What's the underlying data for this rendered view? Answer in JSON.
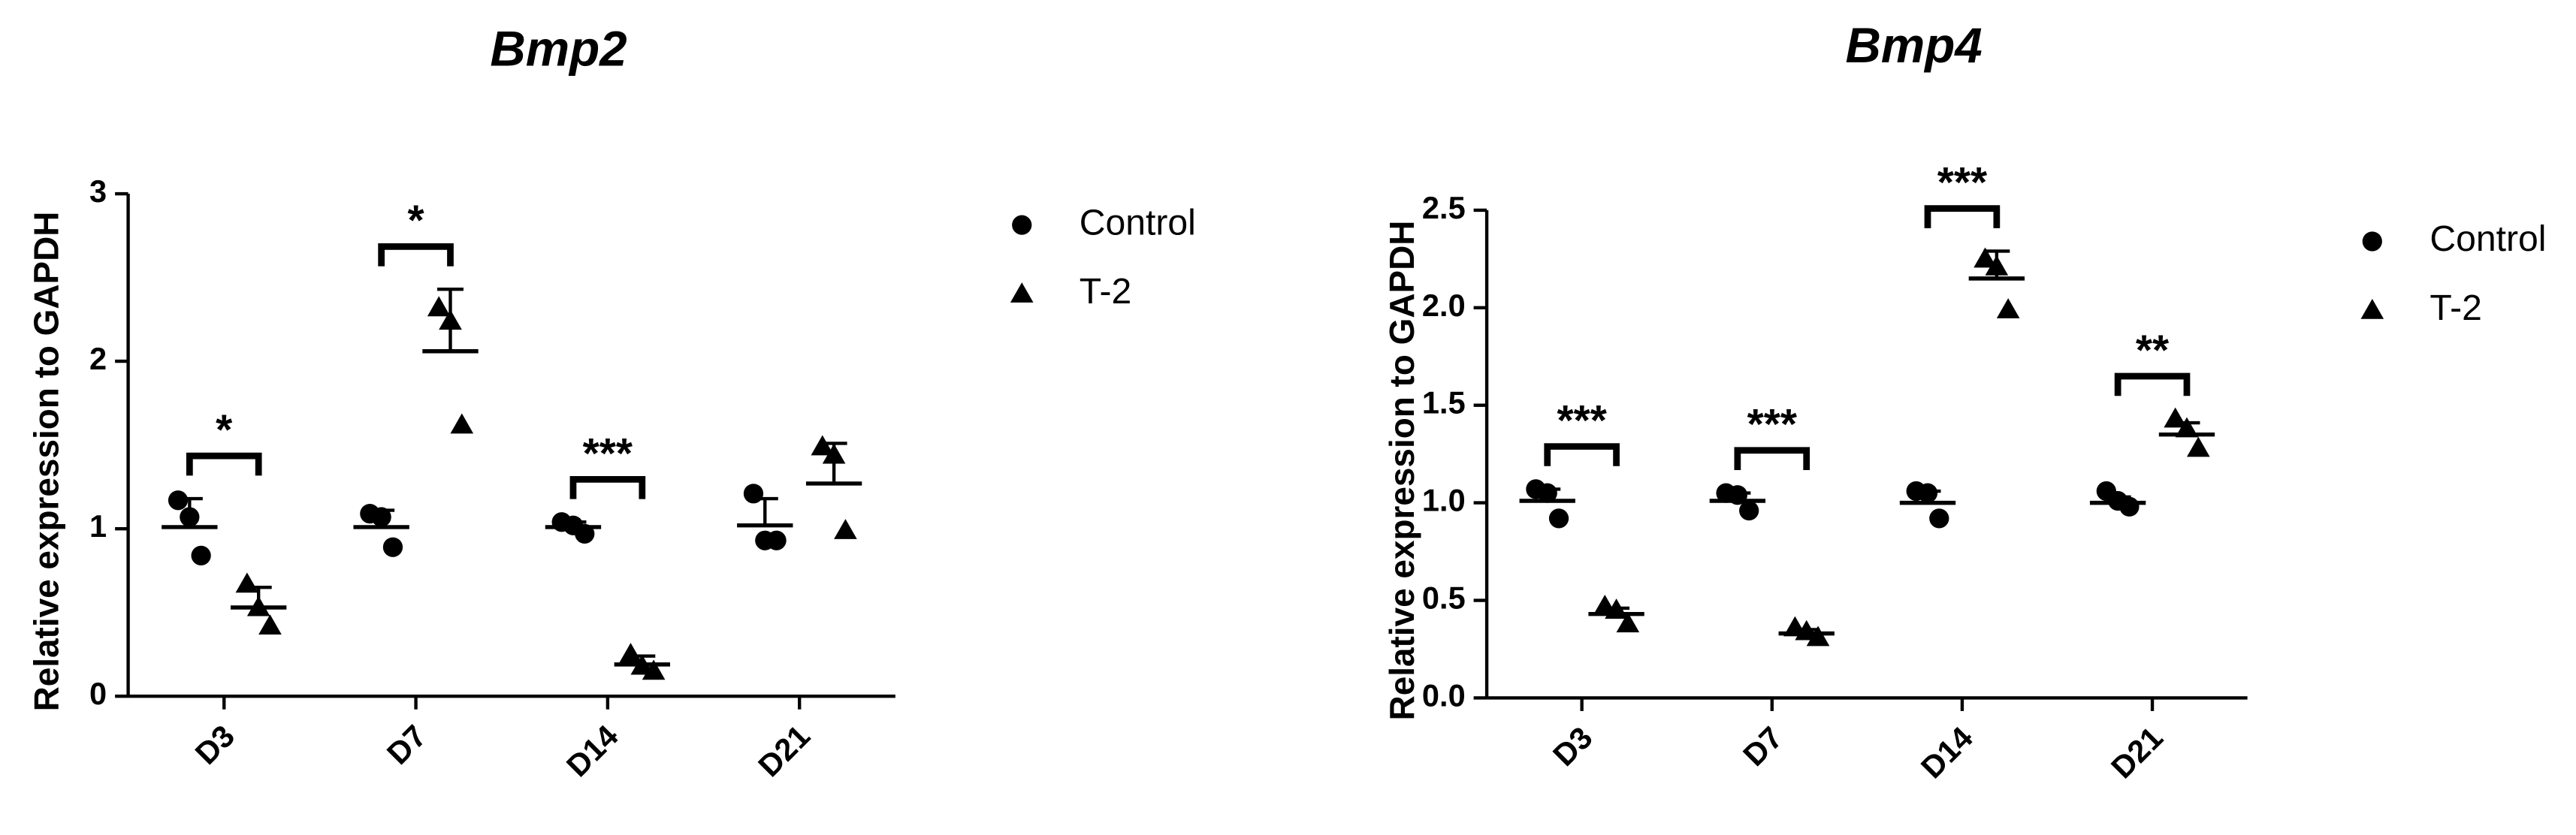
{
  "chart_data": [
    {
      "type": "dot",
      "title": "Bmp2",
      "y_label": "Relative expression to GAPDH",
      "categories": [
        "D3",
        "D7",
        "D14",
        "D21"
      ],
      "ylim": [
        0,
        3
      ],
      "yticks": [
        0,
        1,
        2,
        3
      ],
      "series": [
        {
          "name": "Control",
          "marker": "circle",
          "color": "#000000",
          "points": [
            [
              1.17,
              1.07,
              0.84
            ],
            [
              1.09,
              1.07,
              0.89
            ],
            [
              1.04,
              1.02,
              0.97
            ],
            [
              1.21,
              0.93,
              0.93
            ]
          ],
          "means": [
            1.01,
            1.01,
            1.01,
            1.02
          ],
          "sds": [
            0.17,
            0.1,
            0.03,
            0.16
          ]
        },
        {
          "name": "T-2",
          "marker": "triangle",
          "color": "#000000",
          "points": [
            [
              0.67,
              0.53,
              0.42
            ],
            [
              2.32,
              2.24,
              1.62
            ],
            [
              0.25,
              0.18,
              0.15
            ],
            [
              1.49,
              1.44,
              0.99
            ]
          ],
          "means": [
            0.53,
            2.06,
            0.19,
            1.27
          ],
          "sds": [
            0.12,
            0.37,
            0.05,
            0.24
          ]
        }
      ],
      "significance": [
        "*",
        "*",
        "***",
        null
      ]
    },
    {
      "type": "dot",
      "title": "Bmp4",
      "y_label": "Relative expression to GAPDH",
      "categories": [
        "D3",
        "D7",
        "D14",
        "D21"
      ],
      "ylim": [
        0,
        2.5
      ],
      "yticks": [
        {
          "value": 0,
          "label": "0.0"
        },
        {
          "value": 0.5,
          "label": "0.5"
        },
        {
          "value": 1,
          "label": "1.0"
        },
        {
          "value": 1.5,
          "label": "1.5"
        },
        {
          "value": 2,
          "label": "2.0"
        },
        {
          "value": 2.5,
          "label": "2.5"
        }
      ],
      "series": [
        {
          "name": "Control",
          "marker": "circle",
          "color": "#000000",
          "points": [
            [
              1.07,
              1.05,
              0.92
            ],
            [
              1.05,
              1.04,
              0.96
            ],
            [
              1.06,
              1.05,
              0.92
            ],
            [
              1.06,
              1.01,
              0.98
            ]
          ],
          "means": [
            1.01,
            1.01,
            1.0,
            1.0
          ],
          "sds": [
            0.06,
            0.04,
            0.06,
            0.03
          ]
        },
        {
          "name": "T-2",
          "marker": "triangle",
          "color": "#000000",
          "points": [
            [
              0.47,
              0.45,
              0.38
            ],
            [
              0.36,
              0.34,
              0.31
            ],
            [
              2.25,
              2.21,
              1.99
            ],
            [
              1.43,
              1.38,
              1.28
            ]
          ],
          "means": [
            0.43,
            0.33,
            2.15,
            1.35
          ],
          "sds": [
            0.03,
            0.02,
            0.14,
            0.06
          ]
        }
      ],
      "significance": [
        "***",
        "***",
        "***",
        "**"
      ]
    }
  ]
}
